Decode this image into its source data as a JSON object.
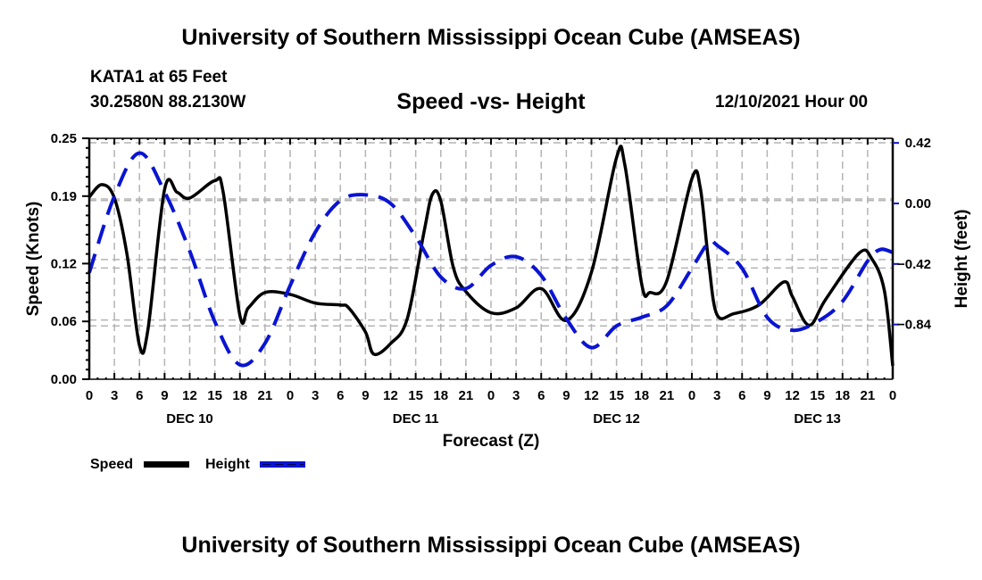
{
  "header": {
    "main_title": "University of Southern Mississippi Ocean Cube (AMSEAS)",
    "station": "KATA1 at 65 Feet",
    "coords": "30.2580N  88.2130W",
    "subtitle": "Speed -vs- Height",
    "datetime": "12/10/2021 Hour 00"
  },
  "footer": {
    "bottom_title": "University of Southern Mississippi Ocean Cube (AMSEAS)"
  },
  "chart_data": {
    "type": "line",
    "title": "Speed -vs- Height",
    "xlabel": "Forecast (Z)",
    "ylabel": "Speed (Knots)",
    "y2label": "Height (feet)",
    "x_units": "forecast hours from 12/10/2021 00Z",
    "xlim": [
      0,
      96
    ],
    "ylim": [
      0.0,
      0.25
    ],
    "y2lim": [
      -1.26,
      0.42
    ],
    "x_ticks": [
      0,
      3,
      6,
      9,
      12,
      15,
      18,
      21,
      24,
      27,
      30,
      33,
      36,
      39,
      42,
      45,
      48,
      51,
      54,
      57,
      60,
      63,
      66,
      69,
      72,
      75,
      78,
      81,
      84,
      87,
      90,
      93,
      96
    ],
    "x_tick_labels": [
      "0",
      "3",
      "6",
      "9",
      "12",
      "15",
      "18",
      "21",
      "0",
      "3",
      "6",
      "9",
      "12",
      "15",
      "18",
      "21",
      "0",
      "3",
      "6",
      "9",
      "12",
      "15",
      "18",
      "21",
      "0",
      "3",
      "6",
      "9",
      "12",
      "15",
      "18",
      "21",
      "0"
    ],
    "day_labels": [
      {
        "label": "DEC 10",
        "center_hour": 12
      },
      {
        "label": "DEC 11",
        "center_hour": 39
      },
      {
        "label": "DEC 12",
        "center_hour": 63
      },
      {
        "label": "DEC 13",
        "center_hour": 87
      }
    ],
    "y_ticks": [
      0.0,
      0.06,
      0.12,
      0.19,
      0.25
    ],
    "y_tick_labels": [
      "0.00",
      "0.06",
      "0.12",
      "0.19",
      "0.25"
    ],
    "y2_ticks": [
      0.42,
      0.0,
      -0.42,
      -0.84
    ],
    "y2_tick_labels": [
      "0.42",
      "0.00",
      "−0.42",
      "−0.84"
    ],
    "grid": true,
    "legend_position": "bottom-left",
    "series": [
      {
        "name": "Speed",
        "axis": "left",
        "color": "#000000",
        "style": "solid",
        "x": [
          0,
          1.5,
          3,
          4.5,
          6,
          7,
          9,
          10.5,
          12,
          15,
          16,
          18,
          19,
          21,
          24,
          27,
          30,
          31,
          33,
          34,
          36,
          38,
          40,
          41,
          42,
          43.5,
          45,
          48,
          51,
          54,
          57,
          60,
          63,
          64,
          66,
          67,
          69,
          72,
          73,
          74,
          75,
          77,
          80,
          83,
          84,
          86,
          88,
          92,
          93.5,
          95,
          96
        ],
        "values": [
          0.189,
          0.202,
          0.188,
          0.13,
          0.035,
          0.051,
          0.197,
          0.194,
          0.188,
          0.206,
          0.194,
          0.066,
          0.074,
          0.09,
          0.088,
          0.079,
          0.077,
          0.074,
          0.049,
          0.026,
          0.037,
          0.063,
          0.153,
          0.192,
          0.185,
          0.116,
          0.091,
          0.069,
          0.074,
          0.094,
          0.061,
          0.111,
          0.23,
          0.222,
          0.099,
          0.09,
          0.102,
          0.208,
          0.199,
          0.122,
          0.067,
          0.068,
          0.077,
          0.101,
          0.086,
          0.056,
          0.083,
          0.131,
          0.125,
          0.092,
          0.014
        ]
      },
      {
        "name": "Height",
        "axis": "right",
        "color": "#0a14d2",
        "style": "dashed",
        "x": [
          0,
          3,
          6,
          9,
          12,
          15,
          18,
          21,
          24,
          27,
          30,
          33,
          36,
          39,
          42,
          45,
          48,
          51,
          54,
          57,
          60,
          63,
          66,
          69,
          72,
          74,
          75,
          78,
          81,
          84,
          87,
          90,
          93,
          94.5,
          96
        ],
        "values": [
          -0.48,
          0.05,
          0.35,
          0.08,
          -0.33,
          -0.82,
          -1.12,
          -0.97,
          -0.57,
          -0.2,
          0.02,
          0.06,
          0.0,
          -0.23,
          -0.51,
          -0.59,
          -0.43,
          -0.37,
          -0.5,
          -0.8,
          -1.0,
          -0.85,
          -0.79,
          -0.71,
          -0.45,
          -0.27,
          -0.29,
          -0.45,
          -0.79,
          -0.88,
          -0.82,
          -0.68,
          -0.4,
          -0.32,
          -0.34
        ]
      }
    ]
  }
}
